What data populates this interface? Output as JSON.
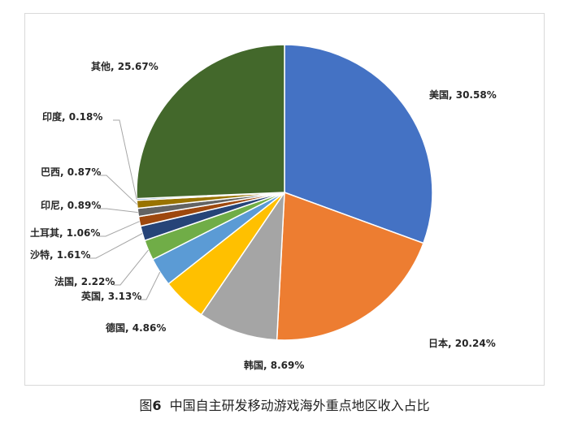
{
  "chart_data": {
    "type": "pie",
    "title": "",
    "caption": {
      "prefix": "图",
      "number": "6",
      "text": "中国自主研发移动游戏海外重点地区收入占比"
    },
    "slices": [
      {
        "name": "美国",
        "value": 30.58,
        "label": "美国, 30.58%",
        "color": "#4472C4"
      },
      {
        "name": "日本",
        "value": 20.24,
        "label": "日本, 20.24%",
        "color": "#ED7D31"
      },
      {
        "name": "韩国",
        "value": 8.69,
        "label": "韩国, 8.69%",
        "color": "#A5A5A5"
      },
      {
        "name": "德国",
        "value": 4.86,
        "label": "德国, 4.86%",
        "color": "#FFC000"
      },
      {
        "name": "英国",
        "value": 3.13,
        "label": "英国, 3.13%",
        "color": "#5B9BD5"
      },
      {
        "name": "法国",
        "value": 2.22,
        "label": "法国, 2.22%",
        "color": "#70AD47"
      },
      {
        "name": "沙特",
        "value": 1.61,
        "label": "沙特, 1.61%",
        "color": "#264478"
      },
      {
        "name": "土耳其",
        "value": 1.06,
        "label": "土耳其, 1.06%",
        "color": "#9E480E"
      },
      {
        "name": "印尼",
        "value": 0.89,
        "label": "印尼, 0.89%",
        "color": "#636363"
      },
      {
        "name": "巴西",
        "value": 0.87,
        "label": "巴西, 0.87%",
        "color": "#997300"
      },
      {
        "name": "印度",
        "value": 0.18,
        "label": "印度, 0.18%",
        "color": "#255E91"
      },
      {
        "name": "其他",
        "value": 25.67,
        "label": "其他, 25.67%",
        "color": "#43682B"
      }
    ]
  }
}
